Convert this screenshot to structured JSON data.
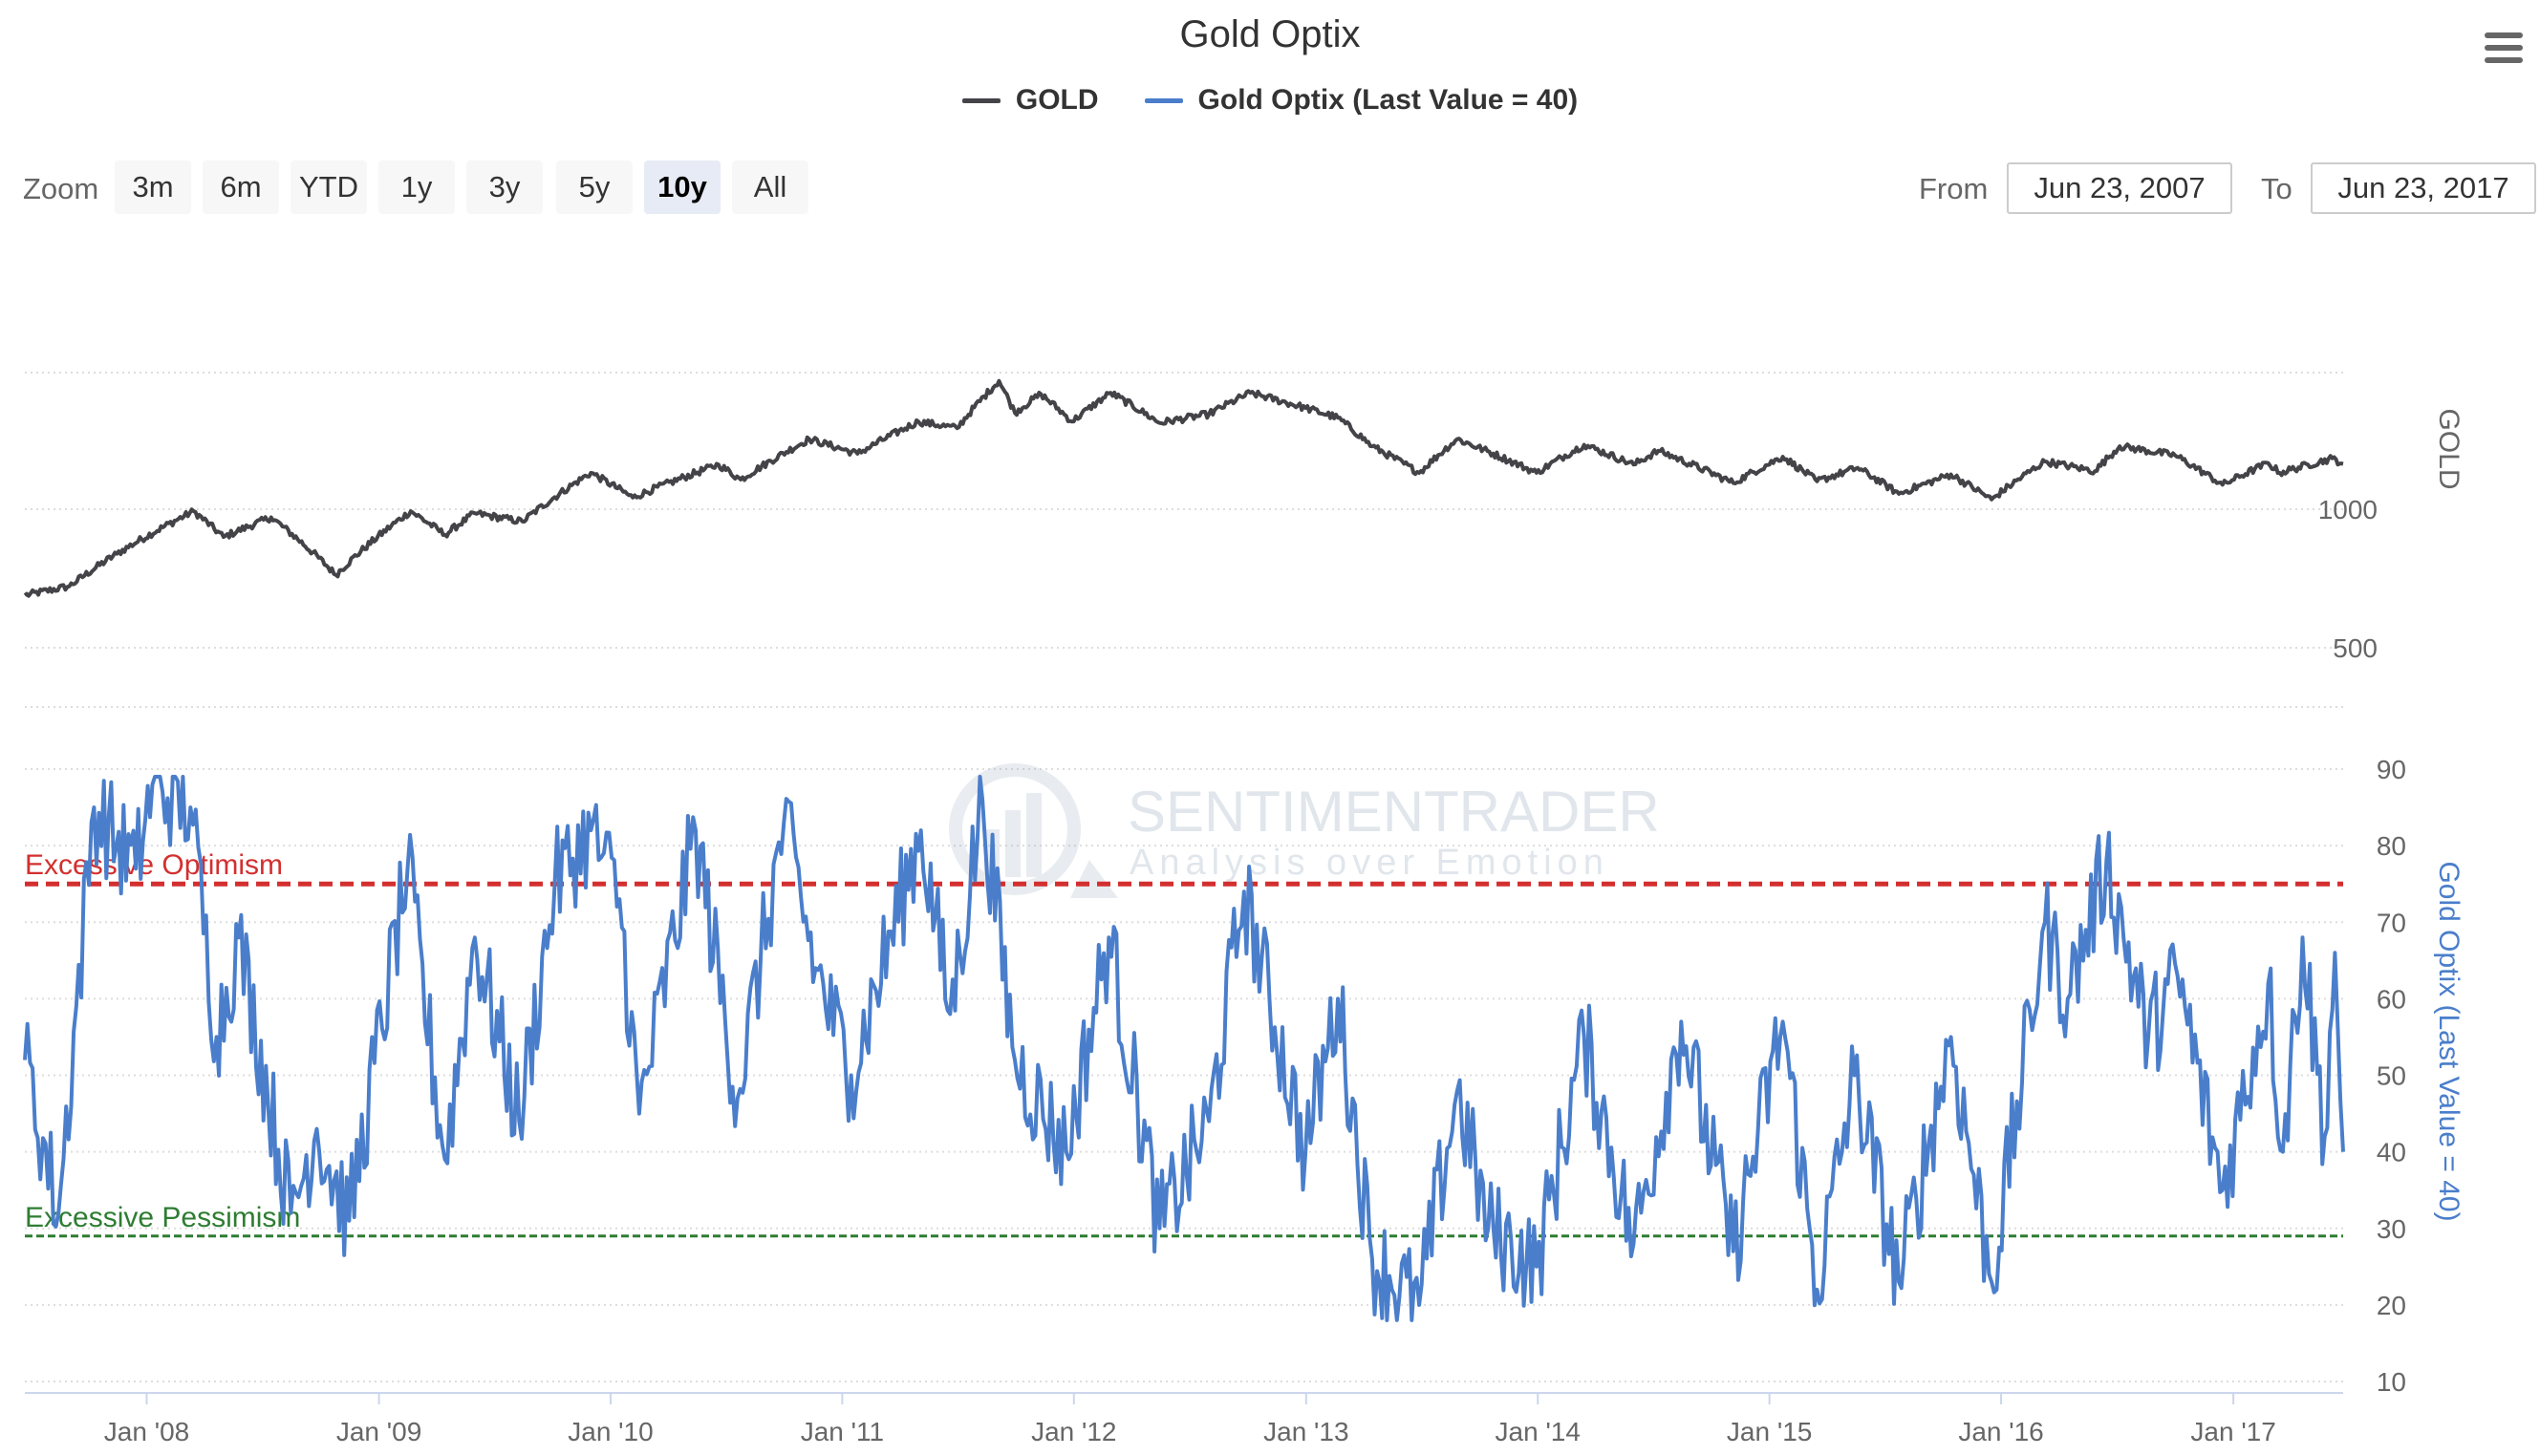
{
  "title": "Gold Optix",
  "legend": [
    {
      "label": "GOLD",
      "color": "#434348"
    },
    {
      "label": "Gold Optix (Last Value = 40)",
      "color": "#4a7ecb"
    }
  ],
  "menu_icon": "hamburger-menu-icon",
  "zoom": {
    "label": "Zoom",
    "buttons": [
      "3m",
      "6m",
      "YTD",
      "1y",
      "3y",
      "5y",
      "10y",
      "All"
    ],
    "active": "10y"
  },
  "range": {
    "from_label": "From",
    "from_value": "Jun 23, 2007",
    "to_label": "To",
    "to_value": "Jun 23, 2017"
  },
  "watermark": {
    "name": "SENTIMENTRADER",
    "tagline": "Analysis over Emotion"
  },
  "chart_data": {
    "type": "line",
    "x_tick_labels": [
      "Jan '08",
      "Jan '09",
      "Jan '10",
      "Jan '11",
      "Jan '12",
      "Jan '13",
      "Jan '14",
      "Jan '15",
      "Jan '16",
      "Jan '17"
    ],
    "x_range": [
      "2007-06-23",
      "2017-06-23"
    ],
    "gold_axis": {
      "label": "GOLD",
      "tick_labels": [
        "500",
        "1000"
      ],
      "scale": "log"
    },
    "optix_axis": {
      "label": "Gold Optix (Last Value = 40)",
      "tick_labels": [
        "10",
        "20",
        "30",
        "40",
        "50",
        "60",
        "70",
        "80",
        "90"
      ],
      "ylim": [
        10,
        90
      ]
    },
    "reference_lines": [
      {
        "label": "Excessive Optimism",
        "value": 75,
        "color": "#d32f2f"
      },
      {
        "label": "Excessive Pessimism",
        "value": 29,
        "color": "#2e7d32"
      }
    ],
    "series": [
      {
        "name": "GOLD",
        "color": "#434348",
        "points": [
          [
            "2007-06-23",
            650
          ],
          [
            "2007-09-01",
            680
          ],
          [
            "2007-11-15",
            800
          ],
          [
            "2008-03-15",
            990
          ],
          [
            "2008-05-01",
            870
          ],
          [
            "2008-07-15",
            960
          ],
          [
            "2008-10-25",
            720
          ],
          [
            "2009-02-20",
            990
          ],
          [
            "2009-04-15",
            880
          ],
          [
            "2009-06-01",
            980
          ],
          [
            "2009-08-15",
            940
          ],
          [
            "2009-12-01",
            1200
          ],
          [
            "2010-02-05",
            1060
          ],
          [
            "2010-06-20",
            1250
          ],
          [
            "2010-07-25",
            1160
          ],
          [
            "2010-11-10",
            1420
          ],
          [
            "2011-01-25",
            1320
          ],
          [
            "2011-05-01",
            1550
          ],
          [
            "2011-07-01",
            1500
          ],
          [
            "2011-09-05",
            1900
          ],
          [
            "2011-09-30",
            1620
          ],
          [
            "2011-11-10",
            1780
          ],
          [
            "2011-12-29",
            1550
          ],
          [
            "2012-02-28",
            1790
          ],
          [
            "2012-05-15",
            1540
          ],
          [
            "2012-08-01",
            1610
          ],
          [
            "2012-10-05",
            1790
          ],
          [
            "2012-12-31",
            1660
          ],
          [
            "2013-02-20",
            1580
          ],
          [
            "2013-04-15",
            1370
          ],
          [
            "2013-06-28",
            1200
          ],
          [
            "2013-08-27",
            1420
          ],
          [
            "2013-12-30",
            1200
          ],
          [
            "2014-03-15",
            1380
          ],
          [
            "2014-06-01",
            1250
          ],
          [
            "2014-07-10",
            1340
          ],
          [
            "2014-11-05",
            1140
          ],
          [
            "2015-01-22",
            1300
          ],
          [
            "2015-03-17",
            1150
          ],
          [
            "2015-05-20",
            1230
          ],
          [
            "2015-07-24",
            1080
          ],
          [
            "2015-10-14",
            1190
          ],
          [
            "2015-12-17",
            1050
          ],
          [
            "2016-03-10",
            1270
          ],
          [
            "2016-05-28",
            1210
          ],
          [
            "2016-07-06",
            1370
          ],
          [
            "2016-10-01",
            1310
          ],
          [
            "2016-12-15",
            1130
          ],
          [
            "2017-02-25",
            1260
          ],
          [
            "2017-03-15",
            1200
          ],
          [
            "2017-06-06",
            1290
          ],
          [
            "2017-06-23",
            1255
          ]
        ]
      },
      {
        "name": "Gold Optix (Last Value = 40)",
        "color": "#4a7ecb",
        "last_value": 40,
        "points": [
          [
            "2007-06-23",
            52
          ],
          [
            "2007-08-15",
            32
          ],
          [
            "2007-10-10",
            85
          ],
          [
            "2007-12-15",
            77
          ],
          [
            "2008-01-10",
            88
          ],
          [
            "2008-03-10",
            85
          ],
          [
            "2008-04-20",
            55
          ],
          [
            "2008-05-25",
            68
          ],
          [
            "2008-08-15",
            32
          ],
          [
            "2008-09-25",
            43
          ],
          [
            "2008-11-15",
            31
          ],
          [
            "2009-02-15",
            77
          ],
          [
            "2009-04-15",
            39
          ],
          [
            "2009-06-01",
            68
          ],
          [
            "2009-08-10",
            44
          ],
          [
            "2009-10-05",
            75
          ],
          [
            "2009-12-01",
            82
          ],
          [
            "2010-01-15",
            73
          ],
          [
            "2010-02-15",
            45
          ],
          [
            "2010-05-15",
            82
          ],
          [
            "2010-07-20",
            47
          ],
          [
            "2010-10-01",
            83
          ],
          [
            "2010-11-20",
            64
          ],
          [
            "2011-01-15",
            50
          ],
          [
            "2011-05-05",
            82
          ],
          [
            "2011-06-20",
            58
          ],
          [
            "2011-08-10",
            86
          ],
          [
            "2011-09-30",
            52
          ],
          [
            "2011-12-20",
            40
          ],
          [
            "2012-02-25",
            68
          ],
          [
            "2012-05-15",
            30
          ],
          [
            "2012-08-01",
            44
          ],
          [
            "2012-09-25",
            74
          ],
          [
            "2012-12-31",
            40
          ],
          [
            "2013-02-20",
            60
          ],
          [
            "2013-04-15",
            26
          ],
          [
            "2013-06-28",
            20
          ],
          [
            "2013-08-27",
            48
          ],
          [
            "2013-10-15",
            30
          ],
          [
            "2013-12-30",
            25
          ],
          [
            "2014-03-15",
            55
          ],
          [
            "2014-06-01",
            28
          ],
          [
            "2014-08-15",
            57
          ],
          [
            "2014-11-05",
            27
          ],
          [
            "2015-01-22",
            57
          ],
          [
            "2015-03-17",
            22
          ],
          [
            "2015-05-15",
            50
          ],
          [
            "2015-07-24",
            23
          ],
          [
            "2015-10-14",
            55
          ],
          [
            "2015-12-17",
            23
          ],
          [
            "2016-03-10",
            70
          ],
          [
            "2016-04-15",
            60
          ],
          [
            "2016-06-15",
            78
          ],
          [
            "2016-08-20",
            55
          ],
          [
            "2016-10-05",
            63
          ],
          [
            "2016-12-15",
            35
          ],
          [
            "2017-02-25",
            62
          ],
          [
            "2017-03-20",
            40
          ],
          [
            "2017-04-20",
            68
          ],
          [
            "2017-05-25",
            42
          ],
          [
            "2017-06-10",
            66
          ],
          [
            "2017-06-23",
            40
          ]
        ]
      }
    ]
  }
}
